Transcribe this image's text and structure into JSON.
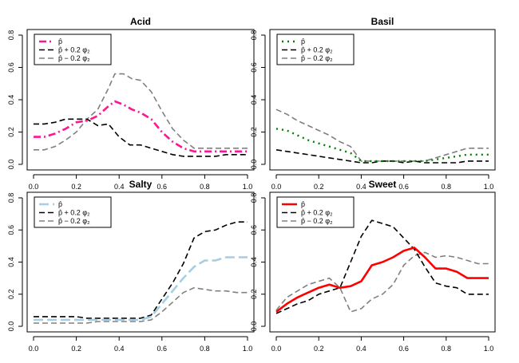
{
  "chart_data": [
    {
      "type": "line",
      "title": "Acid",
      "xlabel": "",
      "ylabel": "",
      "xlim": [
        0,
        1
      ],
      "ylim": [
        0,
        0.8
      ],
      "x_ticks": [
        "0.0",
        "0.2",
        "0.4",
        "0.6",
        "0.8",
        "1.0"
      ],
      "y_ticks": [
        "0.0",
        "0.2",
        "0.4",
        "0.6",
        "0.8"
      ],
      "legend_position": "top-left",
      "grid": false,
      "series": [
        {
          "name": "p̂",
          "color": "#ff1493",
          "style": "dotdash",
          "x": [
            0,
            0.05,
            0.1,
            0.15,
            0.2,
            0.25,
            0.3,
            0.35,
            0.38,
            0.42,
            0.46,
            0.5,
            0.55,
            0.6,
            0.65,
            0.7,
            0.75,
            0.8,
            0.85,
            0.9,
            0.95,
            1.0
          ],
          "y": [
            0.17,
            0.17,
            0.19,
            0.22,
            0.26,
            0.27,
            0.3,
            0.36,
            0.39,
            0.37,
            0.34,
            0.32,
            0.28,
            0.2,
            0.14,
            0.1,
            0.08,
            0.08,
            0.08,
            0.08,
            0.08,
            0.08
          ]
        },
        {
          "name": "p̂ + 0.2 φ₂",
          "color": "#000000",
          "style": "dashed",
          "x": [
            0,
            0.05,
            0.1,
            0.15,
            0.2,
            0.25,
            0.3,
            0.35,
            0.4,
            0.45,
            0.5,
            0.55,
            0.6,
            0.65,
            0.7,
            0.75,
            0.8,
            0.85,
            0.9,
            0.95,
            1.0
          ],
          "y": [
            0.25,
            0.25,
            0.26,
            0.28,
            0.28,
            0.28,
            0.24,
            0.25,
            0.17,
            0.12,
            0.12,
            0.1,
            0.08,
            0.06,
            0.05,
            0.05,
            0.05,
            0.05,
            0.06,
            0.06,
            0.06
          ]
        },
        {
          "name": "p̂ − 0.2 φ₂",
          "color": "#808080",
          "style": "dashed",
          "x": [
            0,
            0.05,
            0.1,
            0.15,
            0.2,
            0.25,
            0.3,
            0.35,
            0.38,
            0.42,
            0.46,
            0.5,
            0.55,
            0.6,
            0.65,
            0.7,
            0.75,
            0.8,
            0.85,
            0.9,
            0.95,
            1.0
          ],
          "y": [
            0.09,
            0.09,
            0.11,
            0.15,
            0.2,
            0.28,
            0.34,
            0.47,
            0.56,
            0.56,
            0.53,
            0.52,
            0.45,
            0.33,
            0.22,
            0.15,
            0.1,
            0.1,
            0.1,
            0.1,
            0.1,
            0.1
          ]
        }
      ]
    },
    {
      "type": "line",
      "title": "Basil",
      "xlabel": "",
      "ylabel": "",
      "xlim": [
        0,
        1
      ],
      "ylim": [
        0,
        0.8
      ],
      "x_ticks": [
        "0.0",
        "0.2",
        "0.4",
        "0.6",
        "0.8",
        "1.0"
      ],
      "y_ticks": [
        "0.0",
        "0.2",
        "0.4",
        "0.6",
        "0.8"
      ],
      "legend_position": "top-left",
      "grid": false,
      "series": [
        {
          "name": "p̂",
          "color": "#008000",
          "style": "dotted",
          "x": [
            0,
            0.05,
            0.1,
            0.15,
            0.2,
            0.25,
            0.3,
            0.35,
            0.4,
            0.45,
            0.5,
            0.55,
            0.6,
            0.65,
            0.7,
            0.75,
            0.8,
            0.85,
            0.9,
            0.95,
            1.0
          ],
          "y": [
            0.22,
            0.21,
            0.18,
            0.15,
            0.13,
            0.11,
            0.09,
            0.07,
            0.02,
            0.02,
            0.02,
            0.02,
            0.02,
            0.02,
            0.02,
            0.03,
            0.04,
            0.05,
            0.06,
            0.06,
            0.06
          ]
        },
        {
          "name": "p̂ + 0.2 φ₂",
          "color": "#000000",
          "style": "dashed",
          "x": [
            0,
            0.05,
            0.1,
            0.15,
            0.2,
            0.25,
            0.3,
            0.35,
            0.4,
            0.45,
            0.5,
            0.55,
            0.6,
            0.65,
            0.7,
            0.75,
            0.8,
            0.85,
            0.9,
            0.95,
            1.0
          ],
          "y": [
            0.09,
            0.08,
            0.07,
            0.06,
            0.05,
            0.04,
            0.03,
            0.02,
            0.01,
            0.01,
            0.02,
            0.02,
            0.01,
            0.02,
            0.01,
            0.01,
            0.01,
            0.01,
            0.02,
            0.02,
            0.02
          ]
        },
        {
          "name": "p̂ − 0.2 φ₂",
          "color": "#808080",
          "style": "dashed",
          "x": [
            0,
            0.05,
            0.1,
            0.15,
            0.2,
            0.25,
            0.3,
            0.35,
            0.4,
            0.45,
            0.5,
            0.55,
            0.6,
            0.65,
            0.7,
            0.75,
            0.8,
            0.85,
            0.9,
            0.95,
            1.0
          ],
          "y": [
            0.34,
            0.31,
            0.27,
            0.24,
            0.21,
            0.18,
            0.14,
            0.11,
            0.02,
            0.02,
            0.02,
            0.02,
            0.02,
            0.02,
            0.02,
            0.04,
            0.06,
            0.08,
            0.1,
            0.1,
            0.1
          ]
        }
      ]
    },
    {
      "type": "line",
      "title": "Salty",
      "xlabel": "",
      "ylabel": "",
      "xlim": [
        0,
        1
      ],
      "ylim": [
        0,
        0.8
      ],
      "x_ticks": [
        "0.0",
        "0.2",
        "0.4",
        "0.6",
        "0.8",
        "1.0"
      ],
      "y_ticks": [
        "0.0",
        "0.2",
        "0.4",
        "0.6",
        "0.8"
      ],
      "legend_position": "top-left",
      "grid": false,
      "series": [
        {
          "name": "p̂",
          "color": "#a6cee3",
          "style": "longdash",
          "x": [
            0,
            0.05,
            0.1,
            0.15,
            0.2,
            0.25,
            0.3,
            0.35,
            0.4,
            0.45,
            0.5,
            0.55,
            0.6,
            0.65,
            0.7,
            0.75,
            0.8,
            0.85,
            0.9,
            0.95,
            1.0
          ],
          "y": [
            0.04,
            0.04,
            0.04,
            0.04,
            0.04,
            0.04,
            0.04,
            0.04,
            0.04,
            0.04,
            0.04,
            0.06,
            0.14,
            0.22,
            0.3,
            0.37,
            0.41,
            0.41,
            0.43,
            0.43,
            0.43
          ]
        },
        {
          "name": "p̂ + 0.2 φ₂",
          "color": "#000000",
          "style": "dashed",
          "x": [
            0,
            0.05,
            0.1,
            0.15,
            0.2,
            0.25,
            0.3,
            0.35,
            0.4,
            0.45,
            0.5,
            0.55,
            0.6,
            0.65,
            0.7,
            0.75,
            0.8,
            0.85,
            0.9,
            0.95,
            1.0
          ],
          "y": [
            0.06,
            0.06,
            0.06,
            0.06,
            0.06,
            0.05,
            0.05,
            0.05,
            0.05,
            0.05,
            0.05,
            0.07,
            0.17,
            0.27,
            0.39,
            0.55,
            0.59,
            0.6,
            0.63,
            0.65,
            0.65
          ]
        },
        {
          "name": "p̂ − 0.2 φ₂",
          "color": "#808080",
          "style": "dashed",
          "x": [
            0,
            0.05,
            0.1,
            0.15,
            0.2,
            0.25,
            0.3,
            0.35,
            0.4,
            0.45,
            0.5,
            0.55,
            0.6,
            0.65,
            0.7,
            0.75,
            0.8,
            0.85,
            0.9,
            0.95,
            1.0
          ],
          "y": [
            0.02,
            0.02,
            0.02,
            0.02,
            0.02,
            0.02,
            0.03,
            0.03,
            0.03,
            0.03,
            0.03,
            0.04,
            0.09,
            0.15,
            0.21,
            0.24,
            0.23,
            0.22,
            0.22,
            0.21,
            0.21
          ]
        }
      ]
    },
    {
      "type": "line",
      "title": "Sweet",
      "xlabel": "",
      "ylabel": "",
      "xlim": [
        0,
        1
      ],
      "ylim": [
        0,
        0.8
      ],
      "x_ticks": [
        "0.0",
        "0.2",
        "0.4",
        "0.6",
        "0.8",
        "1.0"
      ],
      "y_ticks": [
        "0.0",
        "0.2",
        "0.4",
        "0.6",
        "0.8"
      ],
      "legend_position": "top-left",
      "grid": false,
      "series": [
        {
          "name": "p̂",
          "color": "#ff0000",
          "style": "solid",
          "x": [
            0,
            0.05,
            0.1,
            0.15,
            0.2,
            0.25,
            0.3,
            0.35,
            0.4,
            0.45,
            0.5,
            0.55,
            0.6,
            0.65,
            0.7,
            0.75,
            0.8,
            0.85,
            0.9,
            0.95,
            1.0
          ],
          "y": [
            0.09,
            0.14,
            0.18,
            0.21,
            0.24,
            0.26,
            0.24,
            0.25,
            0.28,
            0.38,
            0.4,
            0.43,
            0.47,
            0.49,
            0.43,
            0.36,
            0.36,
            0.34,
            0.3,
            0.3,
            0.3
          ]
        },
        {
          "name": "p̂ + 0.2 φ₂",
          "color": "#000000",
          "style": "dashed",
          "x": [
            0,
            0.05,
            0.1,
            0.15,
            0.2,
            0.25,
            0.3,
            0.35,
            0.4,
            0.45,
            0.5,
            0.55,
            0.6,
            0.65,
            0.7,
            0.75,
            0.8,
            0.85,
            0.9,
            0.95,
            1.0
          ],
          "y": [
            0.08,
            0.11,
            0.14,
            0.16,
            0.2,
            0.22,
            0.24,
            0.4,
            0.56,
            0.66,
            0.64,
            0.62,
            0.55,
            0.48,
            0.37,
            0.27,
            0.25,
            0.24,
            0.2,
            0.2,
            0.2
          ]
        },
        {
          "name": "p̂ − 0.2 φ₂",
          "color": "#808080",
          "style": "dashed",
          "x": [
            0,
            0.05,
            0.1,
            0.15,
            0.2,
            0.25,
            0.3,
            0.35,
            0.4,
            0.45,
            0.5,
            0.55,
            0.6,
            0.65,
            0.7,
            0.75,
            0.8,
            0.85,
            0.9,
            0.95,
            1.0
          ],
          "y": [
            0.1,
            0.18,
            0.22,
            0.26,
            0.28,
            0.3,
            0.24,
            0.09,
            0.11,
            0.17,
            0.2,
            0.26,
            0.38,
            0.44,
            0.46,
            0.43,
            0.44,
            0.43,
            0.41,
            0.39,
            0.39
          ]
        }
      ]
    }
  ]
}
